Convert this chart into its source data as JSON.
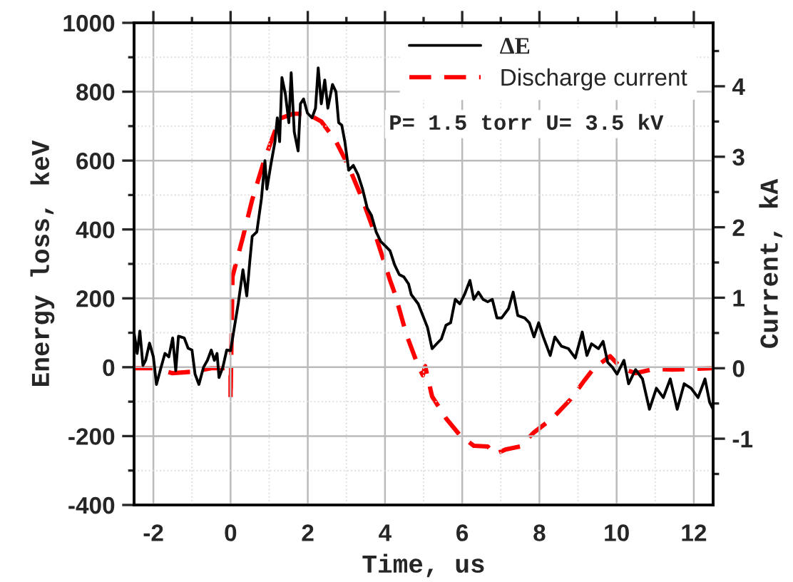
{
  "chart_data": {
    "type": "line",
    "xlabel": "Time, us",
    "ylabel": "Energy loss, keV",
    "y2label": "Current, kA",
    "annotations": [
      "P= 1.5 torr U= 3.5 kV"
    ],
    "xlim": [
      -2.5,
      12.5
    ],
    "xticks": [
      -2,
      0,
      2,
      4,
      6,
      8,
      10,
      12
    ],
    "ylim": [
      -400,
      1000
    ],
    "yticks": [
      -400,
      -200,
      0,
      200,
      400,
      600,
      800,
      1000
    ],
    "y2lim": [
      -1.94,
      4.9
    ],
    "y2ticks": [
      -1,
      0,
      1,
      2,
      3,
      4
    ],
    "grid": true,
    "legend": "top right",
    "series": [
      {
        "name": "ΔE",
        "color": "#000000",
        "line_style": "solid",
        "x": [
          -2.5,
          -2.42,
          -2.35,
          -2.27,
          -2.2,
          -2.1,
          -2.0,
          -1.92,
          -1.8,
          -1.7,
          -1.6,
          -1.5,
          -1.42,
          -1.35,
          -1.2,
          -1.1,
          -1.0,
          -0.92,
          -0.82,
          -0.7,
          -0.6,
          -0.5,
          -0.42,
          -0.35,
          -0.3,
          -0.2,
          -0.1,
          0.0,
          0.2,
          0.32,
          0.42,
          0.5,
          0.56,
          0.68,
          0.8,
          0.89,
          0.94,
          1.04,
          1.15,
          1.21,
          1.27,
          1.33,
          1.42,
          1.51,
          1.57,
          1.65,
          1.75,
          1.81,
          1.89,
          1.99,
          2.11,
          2.2,
          2.27,
          2.35,
          2.44,
          2.52,
          2.64,
          2.73,
          2.8,
          2.88,
          2.96,
          3.06,
          3.18,
          3.3,
          3.42,
          3.54,
          3.65,
          3.77,
          3.89,
          4.01,
          4.13,
          4.25,
          4.37,
          4.49,
          4.61,
          4.68,
          4.86,
          5.1,
          5.22,
          5.34,
          5.46,
          5.58,
          5.7,
          5.82,
          5.94,
          6.06,
          6.2,
          6.3,
          6.42,
          6.54,
          6.66,
          6.78,
          6.9,
          7.02,
          7.2,
          7.32,
          7.44,
          7.62,
          7.74,
          7.86,
          7.98,
          8.1,
          8.28,
          8.4,
          8.57,
          8.75,
          8.93,
          9.11,
          9.23,
          9.35,
          9.53,
          9.65,
          9.77,
          9.89,
          10.01,
          10.19,
          10.31,
          10.49,
          10.67,
          10.85,
          11.03,
          11.21,
          11.39,
          11.57,
          11.75,
          11.93,
          12.11,
          12.29,
          12.41,
          12.5
        ],
        "values": [
          100,
          40,
          105,
          5,
          20,
          70,
          30,
          -50,
          0,
          40,
          30,
          85,
          -10,
          90,
          85,
          55,
          50,
          -20,
          -50,
          0,
          20,
          50,
          20,
          40,
          -30,
          0,
          50,
          48,
          186,
          283,
          207,
          310,
          380,
          393,
          490,
          600,
          517,
          586,
          655,
          724,
          655,
          841,
          793,
          710,
          855,
          683,
          628,
          765,
          779,
          738,
          724,
          752,
          869,
          765,
          834,
          752,
          821,
          800,
          710,
          703,
          655,
          572,
          586,
          559,
          517,
          462,
          441,
          393,
          365,
          352,
          338,
          297,
          269,
          262,
          242,
          211,
          184,
          116,
          54,
          68,
          82,
          122,
          129,
          197,
          184,
          211,
          252,
          197,
          218,
          197,
          190,
          197,
          143,
          143,
          170,
          218,
          150,
          143,
          129,
          88,
          129,
          88,
          34,
          88,
          61,
          54,
          27,
          102,
          34,
          68,
          54,
          75,
          14,
          0,
          -20,
          20,
          -48,
          -7,
          -34,
          -122,
          -61,
          -88,
          -34,
          -122,
          -48,
          -61,
          -88,
          -34,
          -102,
          -122
        ]
      },
      {
        "name": "Discharge current",
        "color": "#ff0000",
        "axis": "y2",
        "line_style": "dashed",
        "x": [
          -2.5,
          -2.0,
          -1.5,
          -1.0,
          -0.5,
          -0.1,
          0.0,
          0.0,
          0.05,
          0.32,
          0.56,
          0.86,
          1.04,
          1.27,
          1.63,
          1.99,
          2.35,
          2.71,
          3.06,
          3.42,
          3.77,
          4.13,
          4.26,
          4.56,
          4.86,
          4.98,
          5.04,
          5.22,
          5.58,
          5.94,
          6.3,
          6.66,
          6.84,
          7.14,
          7.5,
          7.86,
          8.34,
          8.81,
          9.17,
          9.41,
          9.83,
          10.13,
          10.49,
          10.97,
          11.45,
          11.93,
          12.5
        ],
        "values": [
          0,
          0,
          -0.07,
          -0.05,
          0,
          0,
          0,
          -0.45,
          1.3,
          1.86,
          2.39,
          2.93,
          3.2,
          3.54,
          3.61,
          3.61,
          3.5,
          3.24,
          2.86,
          2.39,
          1.86,
          1.25,
          1.05,
          0.47,
          0.03,
          -0.1,
          0.03,
          -0.4,
          -0.71,
          -0.95,
          -1.1,
          -1.11,
          -1.22,
          -1.15,
          -1.11,
          -0.91,
          -0.71,
          -0.44,
          -0.17,
          0,
          0.17,
          0,
          -0.07,
          -0.01,
          -0.02,
          -0.01,
          0
        ]
      }
    ]
  }
}
